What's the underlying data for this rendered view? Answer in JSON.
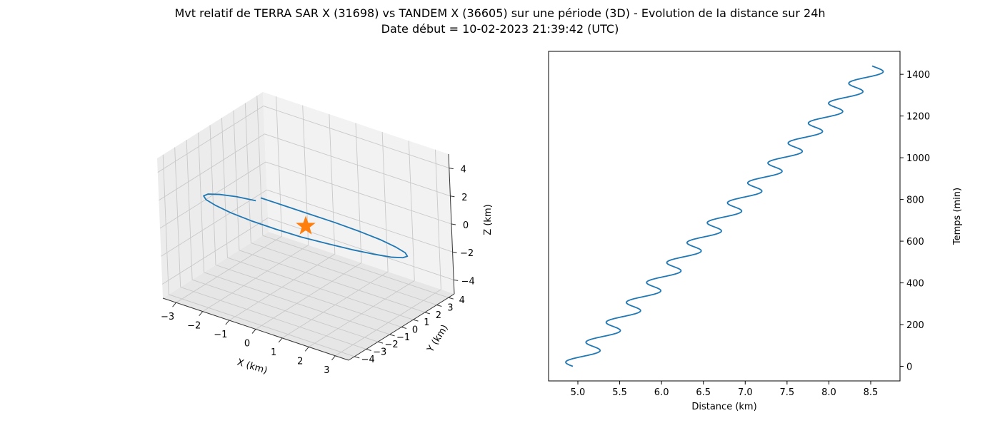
{
  "figure": {
    "title_line1": "Mvt relatif de TERRA SAR X (31698) vs TANDEM X (36605) sur une période (3D) - Evolution de la distance sur 24h",
    "title_line2": "Date début = 10-02-2023 21:39:42 (UTC)"
  },
  "chart_data": [
    {
      "type": "line",
      "projection": "3d",
      "xlabel": "X (km)",
      "ylabel": "Y (km)",
      "zlabel": "Z (km)",
      "xlim": [
        -3.5,
        3.5
      ],
      "ylim": [
        -4.5,
        4.5
      ],
      "zlim": [
        -5,
        5
      ],
      "x_ticks": [
        -3,
        -2,
        -1,
        0,
        1,
        2,
        3
      ],
      "y_ticks": [
        -4,
        -3,
        -2,
        -1,
        0,
        1,
        2,
        3,
        4
      ],
      "z_ticks": [
        -4,
        -2,
        0,
        2,
        4
      ],
      "grid": true,
      "series": [
        {
          "color": "#1f77b4",
          "points": [
            [
              0.0,
              -3.64,
              3.94
            ],
            [
              0.81,
              -3.49,
              3.82
            ],
            [
              1.54,
              -3.06,
              3.47
            ],
            [
              2.21,
              -2.37,
              2.91
            ],
            [
              2.72,
              -1.49,
              2.14
            ],
            [
              3.04,
              -0.49,
              1.23
            ],
            [
              3.14,
              0.55,
              0.22
            ],
            [
              3.05,
              1.54,
              -0.78
            ],
            [
              2.72,
              2.43,
              -1.71
            ],
            [
              2.22,
              3.13,
              -2.5
            ],
            [
              1.58,
              3.62,
              -3.13
            ],
            [
              0.8,
              3.86,
              -3.54
            ],
            [
              -0.03,
              3.84,
              -3.73
            ],
            [
              -0.82,
              3.56,
              -3.66
            ],
            [
              -1.57,
              3.02,
              -3.37
            ],
            [
              -2.22,
              2.3,
              -2.83
            ],
            [
              -2.72,
              1.41,
              -2.09
            ],
            [
              -3.04,
              0.42,
              -1.19
            ],
            [
              -3.14,
              -0.59,
              -0.2
            ],
            [
              -3.04,
              -1.58,
              0.8
            ],
            [
              -2.74,
              -2.42,
              1.7
            ],
            [
              -2.25,
              -3.12,
              2.51
            ],
            [
              -1.6,
              -3.58,
              3.14
            ],
            [
              -0.86,
              -3.8,
              3.57
            ],
            [
              -0.1,
              -3.84,
              3.78
            ]
          ]
        },
        {
          "type": "scatter",
          "marker": "star",
          "color": "#ff7f0e",
          "points": [
            [
              0,
              0,
              0
            ]
          ]
        }
      ]
    },
    {
      "type": "line",
      "xlabel": "Distance (km)",
      "ylabel": "Temps (min)",
      "xlim": [
        4.65,
        8.85
      ],
      "ylim": [
        -70,
        1510
      ],
      "x_ticks": [
        5.0,
        5.5,
        6.0,
        6.5,
        7.0,
        7.5,
        8.0,
        8.5
      ],
      "y_ticks": [
        0,
        200,
        400,
        600,
        800,
        1000,
        1200,
        1400
      ],
      "y_axis_position": "right",
      "grid": false,
      "series": [
        {
          "color": "#1f77b4",
          "model": "distance = 4.94 + 0.00253 * t - 0.14 * sin(2*pi*t/95.5)",
          "t_range": [
            0,
            1440
          ]
        }
      ]
    }
  ]
}
